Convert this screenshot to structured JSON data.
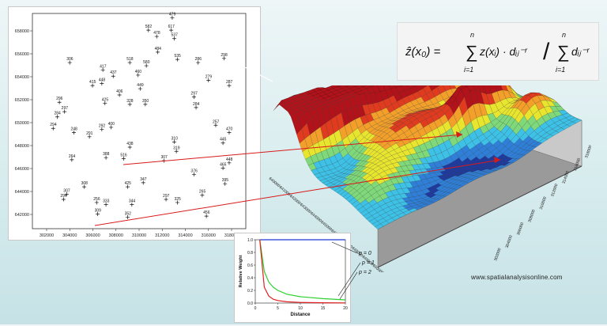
{
  "formula": {
    "lhs": "ẑ(x₀) =",
    "numerator_index": "i=1",
    "numerator_upper": "n",
    "numerator_body": "z(xᵢ) · dᵢⱼ⁻ʳ",
    "denominator_index": "i=1",
    "denominator_upper": "n",
    "denominator_body": "dᵢⱼ⁻ʳ",
    "slash": "/"
  },
  "website": "www.spatialanalysisonline.com",
  "points_map": {
    "y_ticks": [
      "658000",
      "656000",
      "654000",
      "652000",
      "650000",
      "648000",
      "646000",
      "644000",
      "642000"
    ],
    "x_ticks": [
      "302000",
      "304000",
      "306000",
      "308000",
      "310000",
      "312000",
      "314000",
      "316000",
      "318000"
    ],
    "points": [
      {
        "label": "479",
        "x": 0.66,
        "y": 0.005
      },
      {
        "label": "582",
        "x": 0.545,
        "y": 0.065
      },
      {
        "label": "617",
        "x": 0.655,
        "y": 0.065
      },
      {
        "label": "478",
        "x": 0.585,
        "y": 0.095
      },
      {
        "label": "537",
        "x": 0.67,
        "y": 0.105
      },
      {
        "label": "484",
        "x": 0.59,
        "y": 0.17
      },
      {
        "label": "535",
        "x": 0.685,
        "y": 0.205
      },
      {
        "label": "306",
        "x": 0.165,
        "y": 0.22
      },
      {
        "label": "518",
        "x": 0.455,
        "y": 0.22
      },
      {
        "label": "580",
        "x": 0.535,
        "y": 0.235
      },
      {
        "label": "286",
        "x": 0.785,
        "y": 0.22
      },
      {
        "label": "298",
        "x": 0.91,
        "y": 0.2
      },
      {
        "label": "417",
        "x": 0.325,
        "y": 0.255
      },
      {
        "label": "437",
        "x": 0.375,
        "y": 0.285
      },
      {
        "label": "460",
        "x": 0.495,
        "y": 0.28
      },
      {
        "label": "279",
        "x": 0.835,
        "y": 0.305
      },
      {
        "label": "415",
        "x": 0.275,
        "y": 0.33
      },
      {
        "label": "448",
        "x": 0.32,
        "y": 0.32
      },
      {
        "label": "449",
        "x": 0.505,
        "y": 0.345
      },
      {
        "label": "287",
        "x": 0.935,
        "y": 0.33
      },
      {
        "label": "406",
        "x": 0.405,
        "y": 0.375
      },
      {
        "label": "296",
        "x": 0.115,
        "y": 0.41
      },
      {
        "label": "425",
        "x": 0.335,
        "y": 0.415
      },
      {
        "label": "328",
        "x": 0.455,
        "y": 0.42
      },
      {
        "label": "350",
        "x": 0.53,
        "y": 0.42
      },
      {
        "label": "297",
        "x": 0.765,
        "y": 0.385
      },
      {
        "label": "297",
        "x": 0.14,
        "y": 0.455
      },
      {
        "label": "284",
        "x": 0.105,
        "y": 0.48
      },
      {
        "label": "284",
        "x": 0.775,
        "y": 0.435
      },
      {
        "label": "294",
        "x": 0.085,
        "y": 0.535
      },
      {
        "label": "248",
        "x": 0.185,
        "y": 0.555
      },
      {
        "label": "292",
        "x": 0.32,
        "y": 0.54
      },
      {
        "label": "400",
        "x": 0.365,
        "y": 0.53
      },
      {
        "label": "257",
        "x": 0.87,
        "y": 0.52
      },
      {
        "label": "291",
        "x": 0.26,
        "y": 0.575
      },
      {
        "label": "470",
        "x": 0.935,
        "y": 0.555
      },
      {
        "label": "310",
        "x": 0.67,
        "y": 0.6
      },
      {
        "label": "438",
        "x": 0.455,
        "y": 0.625
      },
      {
        "label": "445",
        "x": 0.905,
        "y": 0.605
      },
      {
        "label": "319",
        "x": 0.68,
        "y": 0.645
      },
      {
        "label": "388",
        "x": 0.34,
        "y": 0.675
      },
      {
        "label": "516",
        "x": 0.425,
        "y": 0.68
      },
      {
        "label": "264",
        "x": 0.175,
        "y": 0.685
      },
      {
        "label": "307",
        "x": 0.62,
        "y": 0.69
      },
      {
        "label": "448",
        "x": 0.935,
        "y": 0.7
      },
      {
        "label": "465",
        "x": 0.905,
        "y": 0.725
      },
      {
        "label": "376",
        "x": 0.765,
        "y": 0.755
      },
      {
        "label": "347",
        "x": 0.52,
        "y": 0.795
      },
      {
        "label": "308",
        "x": 0.235,
        "y": 0.815
      },
      {
        "label": "425",
        "x": 0.445,
        "y": 0.815
      },
      {
        "label": "395",
        "x": 0.915,
        "y": 0.8
      },
      {
        "label": "307",
        "x": 0.15,
        "y": 0.85
      },
      {
        "label": "265",
        "x": 0.805,
        "y": 0.855
      },
      {
        "label": "294",
        "x": 0.135,
        "y": 0.875
      },
      {
        "label": "297",
        "x": 0.63,
        "y": 0.875
      },
      {
        "label": "256",
        "x": 0.295,
        "y": 0.89
      },
      {
        "label": "333",
        "x": 0.34,
        "y": 0.9
      },
      {
        "label": "344",
        "x": 0.465,
        "y": 0.9
      },
      {
        "label": "325",
        "x": 0.685,
        "y": 0.89
      },
      {
        "label": "309",
        "x": 0.3,
        "y": 0.945
      },
      {
        "label": "352",
        "x": 0.445,
        "y": 0.96
      },
      {
        "label": "456",
        "x": 0.825,
        "y": 0.955
      }
    ]
  },
  "surface": {
    "axis_labels_front": [
      "640000",
      "641000",
      "642000",
      "643000",
      "644000",
      "645000",
      "646000",
      "647000",
      "648000",
      "649000",
      "650000"
    ],
    "axis_labels_right": [
      "302000",
      "304000",
      "306000",
      "308000",
      "310000",
      "312000",
      "314000",
      "316000",
      "318000"
    ],
    "colors": [
      "#1f3a9e",
      "#2f7fd8",
      "#3ec1e6",
      "#7fd87a",
      "#e8e52f",
      "#f2a02a",
      "#e03a1f",
      "#b2121a"
    ]
  },
  "weight_chart": {
    "type": "line",
    "xlabel": "Distance",
    "ylabel": "Relative Weight",
    "x_ticks": [
      "0",
      "5",
      "10",
      "15",
      "20"
    ],
    "y_ticks": [
      "0.0",
      "0.2",
      "0.4",
      "0.6",
      "0.8",
      "1.0"
    ],
    "xlim": [
      0,
      20
    ],
    "ylim": [
      0,
      1
    ],
    "series": [
      {
        "name": "p = 0",
        "color": "#1f3ad6",
        "x": [
          1,
          2,
          3,
          4,
          5,
          7,
          10,
          15,
          20
        ],
        "y": [
          1,
          1,
          1,
          1,
          1,
          1,
          1,
          1,
          1
        ]
      },
      {
        "name": "p = 1",
        "color": "#2fd12f",
        "x": [
          1,
          2,
          3,
          4,
          5,
          7,
          10,
          15,
          20
        ],
        "y": [
          1,
          0.5,
          0.33,
          0.25,
          0.2,
          0.14,
          0.1,
          0.07,
          0.05
        ]
      },
      {
        "name": "p = 2",
        "color": "#e02020",
        "x": [
          1,
          2,
          3,
          4,
          5,
          7,
          10,
          15,
          20
        ],
        "y": [
          1,
          0.25,
          0.11,
          0.06,
          0.04,
          0.02,
          0.01,
          0.005,
          0.003
        ]
      }
    ]
  }
}
